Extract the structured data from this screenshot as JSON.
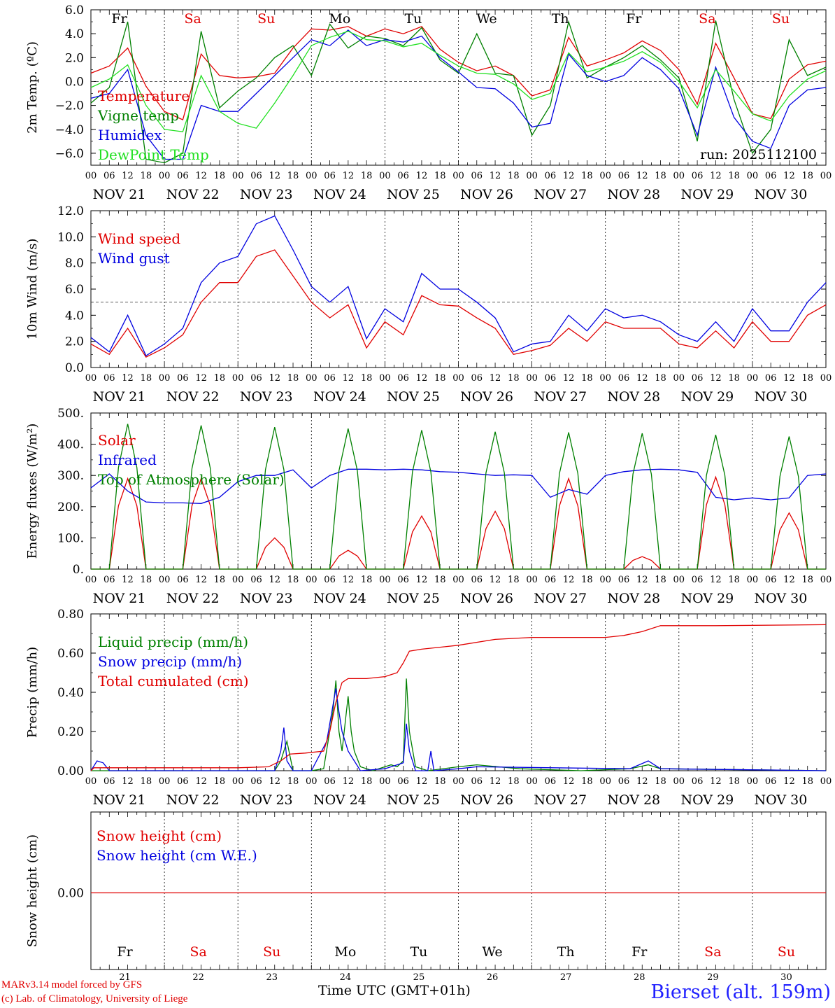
{
  "footer": {
    "model_line": "MARv3.14 model forced by GFS",
    "credit_line": "(c) Lab. of Climatology, University of Liege",
    "time_label": "Time UTC (GMT+01h)",
    "station": "Bierset (alt. 159m)"
  },
  "colors": {
    "red": "#e00000",
    "green": "#008000",
    "blue": "#0000e0",
    "light_green": "#20e020",
    "weekend": "#e00000",
    "weekday": "#000000"
  },
  "chart_data": [
    {
      "type": "line",
      "ylabel": "2m Temp. (ºC)",
      "ylim": [
        -7,
        6
      ],
      "yticks": [
        6.0,
        4.0,
        2.0,
        0.0,
        -2.0,
        -4.0,
        -6.0
      ],
      "ytick_labels": [
        "6.0",
        "4.0",
        "2.0",
        "0.0",
        "−2.0",
        "−4.0",
        "−6.0"
      ],
      "reference_line": 0,
      "annotation": "run: 2025112100",
      "day_names": [
        "Fr",
        "Sa",
        "Su",
        "Mo",
        "Tu",
        "We",
        "Th",
        "Fr",
        "Sa",
        "Su"
      ],
      "x_hours": [
        0,
        6,
        12,
        18,
        24,
        30,
        36,
        42,
        48,
        54,
        60,
        66,
        72,
        78,
        84,
        90,
        96,
        102,
        108,
        114,
        120,
        126,
        132,
        138,
        144,
        150,
        156,
        162,
        168,
        174,
        180,
        186,
        192,
        198,
        204,
        210,
        216,
        222,
        228,
        234,
        240
      ],
      "series": [
        {
          "name": "Temperature",
          "color": "#e00000",
          "values": [
            0.7,
            1.3,
            2.8,
            -0.4,
            -2.5,
            -3.2,
            2.3,
            0.5,
            0.3,
            0.4,
            0.7,
            2.8,
            4.4,
            4.3,
            4.6,
            3.8,
            4.4,
            4.0,
            4.6,
            2.7,
            1.6,
            0.9,
            1.3,
            0.5,
            -1.2,
            -0.7,
            3.7,
            1.3,
            1.8,
            2.4,
            3.4,
            2.6,
            1.0,
            -1.9,
            3.2,
            0.3,
            -2.7,
            -3.1,
            0.2,
            1.4,
            1.7
          ]
        },
        {
          "name": "Vigne temp",
          "color": "#008000",
          "values": [
            -1.8,
            -0.5,
            5.0,
            -6.5,
            -6.8,
            -6.0,
            4.2,
            -2.2,
            -0.8,
            0.3,
            2.0,
            3.0,
            0.5,
            4.8,
            2.8,
            3.8,
            3.6,
            3.0,
            4.5,
            1.8,
            0.7,
            4.0,
            0.7,
            0.5,
            -4.5,
            -2.0,
            5.0,
            0.3,
            1.2,
            2.0,
            3.0,
            1.8,
            0.3,
            -5.0,
            5.1,
            -1.5,
            -6.0,
            -4.0,
            3.5,
            0.5,
            1.2
          ]
        },
        {
          "name": "Humidex",
          "color": "#0000e0",
          "values": [
            -1.4,
            -1.0,
            1.0,
            -4.5,
            -6.5,
            -6.5,
            -2.0,
            -2.5,
            -2.5,
            -1.0,
            0.5,
            2.0,
            3.5,
            3.0,
            4.3,
            3.0,
            3.5,
            3.3,
            3.8,
            2.0,
            0.8,
            -0.5,
            -0.6,
            -1.8,
            -3.8,
            -3.5,
            2.3,
            0.5,
            0.0,
            0.5,
            2.0,
            1.0,
            -0.6,
            -4.5,
            1.2,
            -3.0,
            -5.0,
            -5.6,
            -2.0,
            -0.7,
            -0.5
          ]
        },
        {
          "name": "DewPoint Temp",
          "color": "#20e020",
          "values": [
            -0.5,
            0.2,
            1.4,
            -2.0,
            -4.0,
            -4.2,
            0.5,
            -2.5,
            -3.5,
            -3.9,
            -1.8,
            0.5,
            3.0,
            3.7,
            4.2,
            3.5,
            3.4,
            2.9,
            3.2,
            2.2,
            1.3,
            0.7,
            0.6,
            -0.2,
            -1.5,
            -1.0,
            2.4,
            0.8,
            1.2,
            1.7,
            2.5,
            1.6,
            0.0,
            -2.2,
            1.0,
            -0.8,
            -2.7,
            -3.3,
            -1.2,
            0.2,
            0.9
          ]
        }
      ]
    },
    {
      "type": "line",
      "ylabel": "10m Wind (m/s)",
      "ylim": [
        0,
        12
      ],
      "yticks": [
        0.0,
        2.0,
        4.0,
        6.0,
        8.0,
        10.0,
        12.0
      ],
      "ytick_labels": [
        "0.0",
        "2.0",
        "4.0",
        "6.0",
        "8.0",
        "10.0",
        "12.0"
      ],
      "reference_line": 5,
      "x_hours": [
        0,
        6,
        12,
        18,
        24,
        30,
        36,
        42,
        48,
        54,
        60,
        66,
        72,
        78,
        84,
        90,
        96,
        102,
        108,
        114,
        120,
        126,
        132,
        138,
        144,
        150,
        156,
        162,
        168,
        174,
        180,
        186,
        192,
        198,
        204,
        210,
        216,
        222,
        228,
        234,
        240
      ],
      "series": [
        {
          "name": "Wind speed",
          "color": "#e00000",
          "values": [
            1.8,
            1.0,
            3.0,
            0.8,
            1.5,
            2.5,
            5.0,
            6.5,
            6.5,
            8.5,
            9.0,
            7.0,
            5.0,
            3.8,
            4.8,
            1.5,
            3.5,
            2.5,
            5.5,
            4.8,
            4.7,
            3.8,
            3.0,
            1.0,
            1.3,
            1.7,
            3.0,
            2.0,
            3.5,
            3.0,
            3.0,
            3.0,
            1.8,
            1.5,
            2.8,
            1.5,
            3.5,
            2.0,
            2.0,
            4.0,
            4.8
          ]
        },
        {
          "name": "Wind gust",
          "color": "#0000e0",
          "values": [
            2.3,
            1.2,
            4.0,
            0.9,
            1.8,
            3.0,
            6.5,
            8.0,
            8.5,
            11.0,
            11.6,
            9.0,
            6.2,
            5.0,
            6.2,
            2.2,
            4.5,
            3.5,
            7.2,
            6.0,
            6.0,
            5.0,
            3.8,
            1.2,
            1.8,
            2.0,
            4.0,
            2.8,
            4.5,
            3.8,
            4.0,
            3.5,
            2.5,
            2.0,
            3.5,
            2.0,
            4.5,
            2.8,
            2.8,
            5.0,
            6.5
          ]
        }
      ]
    },
    {
      "type": "line",
      "ylabel": "Energy fluxes (W/m²)",
      "ylim": [
        0,
        500
      ],
      "yticks": [
        0,
        100,
        200,
        300,
        400,
        500
      ],
      "ytick_labels": [
        "0.",
        "100.",
        "200.",
        "300.",
        "400.",
        "500."
      ],
      "series": [
        {
          "name": "Solar",
          "color": "#e00000",
          "peaks": [
            {
              "hour": 12,
              "value": 290
            },
            {
              "hour": 36,
              "value": 290
            },
            {
              "hour": 60,
              "value": 100
            },
            {
              "hour": 84,
              "value": 60
            },
            {
              "hour": 108,
              "value": 170
            },
            {
              "hour": 132,
              "value": 185
            },
            {
              "hour": 156,
              "value": 290
            },
            {
              "hour": 180,
              "value": 40
            },
            {
              "hour": 204,
              "value": 295
            },
            {
              "hour": 228,
              "value": 180
            }
          ]
        },
        {
          "name": "Infrared",
          "color": "#0000e0",
          "x_hours": [
            0,
            6,
            12,
            18,
            24,
            30,
            36,
            42,
            48,
            54,
            60,
            66,
            72,
            78,
            84,
            90,
            96,
            102,
            108,
            114,
            120,
            126,
            132,
            138,
            144,
            150,
            156,
            162,
            168,
            174,
            180,
            186,
            192,
            198,
            204,
            210,
            216,
            222,
            228,
            234,
            240
          ],
          "values": [
            260,
            305,
            250,
            215,
            212,
            212,
            210,
            230,
            280,
            300,
            300,
            318,
            260,
            300,
            320,
            320,
            318,
            320,
            318,
            312,
            310,
            305,
            300,
            302,
            300,
            230,
            255,
            240,
            300,
            312,
            318,
            320,
            318,
            310,
            230,
            222,
            228,
            222,
            228,
            300,
            305
          ]
        },
        {
          "name": "Top of Atmosphere (Solar)",
          "color": "#008000",
          "peaks": [
            {
              "hour": 12,
              "value": 465
            },
            {
              "hour": 36,
              "value": 460
            },
            {
              "hour": 60,
              "value": 455
            },
            {
              "hour": 84,
              "value": 450
            },
            {
              "hour": 108,
              "value": 445
            },
            {
              "hour": 132,
              "value": 440
            },
            {
              "hour": 156,
              "value": 438
            },
            {
              "hour": 180,
              "value": 435
            },
            {
              "hour": 204,
              "value": 430
            },
            {
              "hour": 228,
              "value": 425
            }
          ]
        }
      ]
    },
    {
      "type": "line",
      "ylabel": "Precip (mm/h)",
      "ylim": [
        0,
        0.8
      ],
      "yticks": [
        0.0,
        0.2,
        0.4,
        0.6,
        0.8
      ],
      "ytick_labels": [
        "0.00",
        "0.20",
        "0.40",
        "0.60",
        "0.80"
      ],
      "series": [
        {
          "name": "Liquid precip (mm/h)",
          "color": "#008000",
          "x_hours": [
            0,
            60,
            62,
            64,
            66,
            72,
            76,
            79,
            80,
            81,
            82,
            84,
            85,
            86,
            88,
            92,
            96,
            98,
            100,
            102,
            103,
            104,
            106,
            110,
            120,
            126,
            140,
            160,
            176,
            182,
            186,
            240
          ],
          "values": [
            0,
            0,
            0.05,
            0.15,
            0,
            0,
            0.01,
            0.3,
            0.46,
            0.2,
            0.1,
            0.38,
            0.2,
            0.1,
            0.02,
            0,
            0.02,
            0.03,
            0.02,
            0.05,
            0.47,
            0.2,
            0.02,
            0,
            0.02,
            0.03,
            0.01,
            0,
            0.01,
            0.03,
            0.01,
            0
          ]
        },
        {
          "name": "Snow precip (mm/h)",
          "color": "#0000e0",
          "x_hours": [
            0,
            2,
            4,
            6,
            60,
            62,
            63,
            64,
            66,
            72,
            77,
            80,
            81,
            82,
            84,
            86,
            88,
            96,
            102,
            103,
            104,
            106,
            110,
            111,
            112,
            120,
            126,
            176,
            182,
            186,
            240
          ],
          "values": [
            0,
            0.05,
            0.04,
            0,
            0,
            0.1,
            0.22,
            0.05,
            0,
            0,
            0.15,
            0.42,
            0.3,
            0.2,
            0.1,
            0.05,
            0,
            0.01,
            0.04,
            0.24,
            0.1,
            0,
            0,
            0.1,
            0,
            0.01,
            0.02,
            0.01,
            0.05,
            0.01,
            0
          ]
        },
        {
          "name": "Total cumulated (cm)",
          "color": "#e00000",
          "x_hours": [
            0,
            1,
            24,
            48,
            58,
            62,
            65,
            70,
            76,
            78,
            80,
            82,
            84,
            86,
            90,
            96,
            98,
            100,
            102,
            104,
            108,
            114,
            120,
            132,
            144,
            168,
            174,
            180,
            186,
            204,
            240
          ],
          "values": [
            0,
            0.015,
            0.015,
            0.015,
            0.02,
            0.05,
            0.085,
            0.09,
            0.1,
            0.2,
            0.35,
            0.45,
            0.47,
            0.47,
            0.47,
            0.48,
            0.49,
            0.5,
            0.55,
            0.61,
            0.62,
            0.63,
            0.64,
            0.67,
            0.68,
            0.68,
            0.69,
            0.71,
            0.74,
            0.74,
            0.745
          ]
        }
      ]
    },
    {
      "type": "line",
      "ylabel": "Snow height (cm)",
      "yticks": [
        0.0
      ],
      "ytick_labels": [
        "0.00"
      ],
      "day_names": [
        "Fr",
        "Sa",
        "Su",
        "Mo",
        "Tu",
        "We",
        "Th",
        "Fr",
        "Sa",
        "Su"
      ],
      "day_numbers": [
        "21",
        "22",
        "23",
        "24",
        "25",
        "26",
        "27",
        "28",
        "29",
        "30"
      ],
      "series": [
        {
          "name": "Snow height (cm)",
          "color": "#e00000",
          "values": [
            0,
            0
          ]
        },
        {
          "name": "Snow height (cm W.E.)",
          "color": "#0000e0",
          "values": [
            0,
            0
          ]
        }
      ]
    }
  ],
  "x_axis": {
    "hour_labels": [
      "00",
      "06",
      "12",
      "18"
    ],
    "end_label": "00",
    "dates": [
      "NOV 21",
      "NOV 22",
      "NOV 23",
      "NOV 24",
      "NOV 25",
      "NOV 26",
      "NOV 27",
      "NOV 28",
      "NOV 29",
      "NOV 30"
    ],
    "weekend_days": [
      1,
      2,
      8,
      9
    ]
  }
}
